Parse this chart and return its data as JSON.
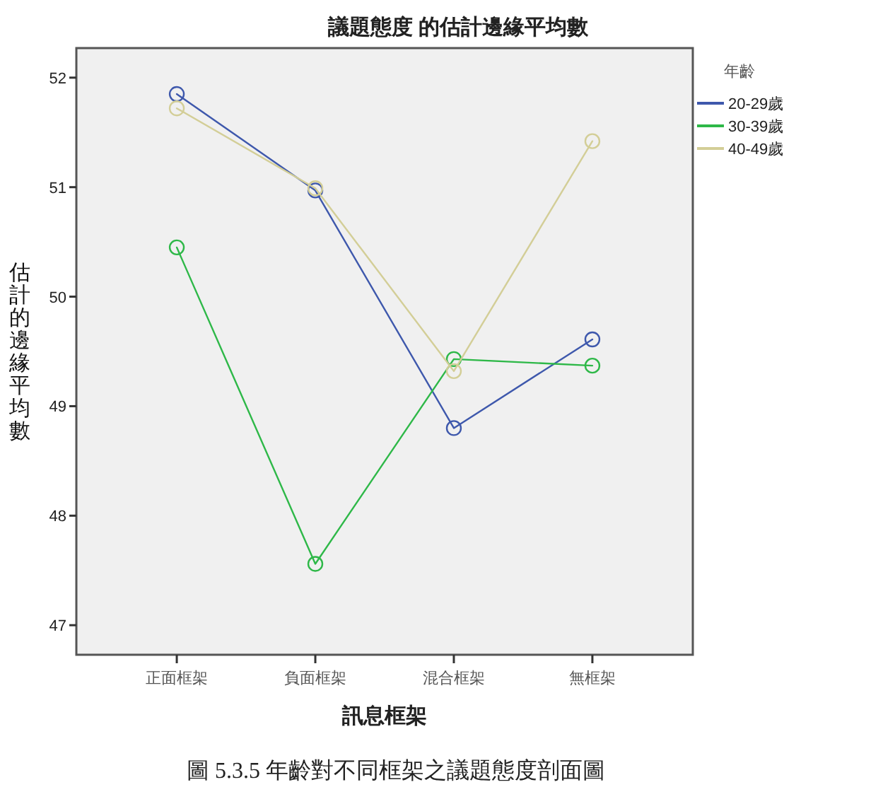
{
  "chart_data": {
    "type": "line",
    "title": "議題態度 的估計邊緣平均數",
    "xlabel": "訊息框架",
    "ylabel": "估計的邊緣平均數",
    "legend_title": "年齡",
    "annotations": [
      "圖 5.3.5 年齡對不同框架之議題態度剖面圖"
    ],
    "categories": [
      "正面框架",
      "負面框架",
      "混合框架",
      "無框架"
    ],
    "series": [
      {
        "name": "20-29歲",
        "color": "#3e58ac",
        "values": [
          51.85,
          50.97,
          48.8,
          49.61
        ]
      },
      {
        "name": "30-39歲",
        "color": "#2eb848",
        "values": [
          50.45,
          47.56,
          49.43,
          49.37
        ]
      },
      {
        "name": "40-49歲",
        "color": "#d3ce97",
        "values": [
          51.72,
          50.99,
          49.32,
          51.42
        ]
      }
    ],
    "ylim": [
      46.73,
      52.27
    ],
    "yticks": [
      47,
      48,
      49,
      50,
      51,
      52
    ],
    "legend": "right",
    "marker": "circle",
    "line_style": "solid"
  }
}
